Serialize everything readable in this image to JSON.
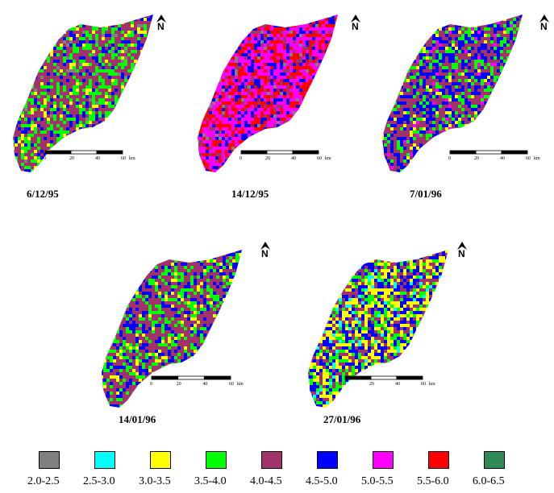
{
  "legend": {
    "classes": [
      {
        "label": "2.0-2.5",
        "color": "#808080"
      },
      {
        "label": "2.5-3.0",
        "color": "#00ffff"
      },
      {
        "label": "3.0-3.5",
        "color": "#ffff00"
      },
      {
        "label": "3.5-4.0",
        "color": "#00ff00"
      },
      {
        "label": "4.0-4.5",
        "color": "#a0336b"
      },
      {
        "label": "4.5-5.0",
        "color": "#0000ff"
      },
      {
        "label": "5.0-5.5",
        "color": "#ff00ff"
      },
      {
        "label": "5.5-6.0",
        "color": "#ff0000"
      },
      {
        "label": "6.0-6.5",
        "color": "#2e8b57"
      }
    ]
  },
  "scale_bar": {
    "ticks": [
      "0",
      "20",
      "40",
      "60"
    ],
    "unit": "km"
  },
  "north_label": "N",
  "maps": [
    {
      "date": "6/12/95",
      "mix": {
        "#a0336b": 0.45,
        "#00ff00": 0.28,
        "#0000ff": 0.14,
        "#ffff00": 0.1,
        "#808080": 0.03
      }
    },
    {
      "date": "14/12/95",
      "mix": {
        "#ff00ff": 0.42,
        "#ff0000": 0.32,
        "#0000ff": 0.16,
        "#a0336b": 0.06,
        "#808080": 0.04
      }
    },
    {
      "date": "7/01/96",
      "mix": {
        "#a0336b": 0.42,
        "#0000ff": 0.3,
        "#00ff00": 0.18,
        "#ffff00": 0.06,
        "#ff00ff": 0.04
      }
    },
    {
      "date": "14/01/96",
      "mix": {
        "#a0336b": 0.48,
        "#00ff00": 0.24,
        "#0000ff": 0.2,
        "#ffff00": 0.08
      }
    },
    {
      "date": "27/01/96",
      "mix": {
        "#ffff00": 0.28,
        "#0000ff": 0.26,
        "#a0336b": 0.22,
        "#00ff00": 0.18,
        "#00ffff": 0.06
      }
    }
  ]
}
